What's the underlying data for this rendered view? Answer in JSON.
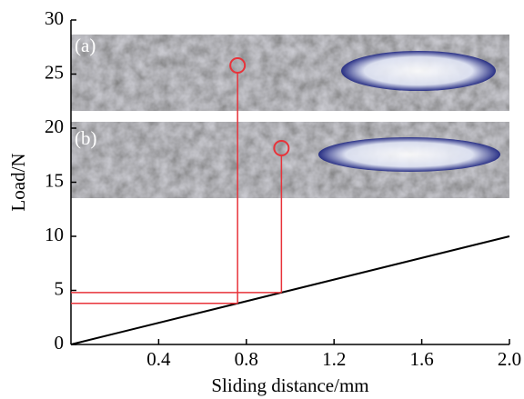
{
  "chart_data": {
    "type": "line",
    "xlabel": "Sliding distance/mm",
    "ylabel": "Load/N",
    "series": [
      {
        "color": "#000000",
        "x": [
          0,
          2
        ],
        "values": [
          0,
          10
        ]
      }
    ],
    "markers": [
      {
        "label": "(a)",
        "x": 0.76,
        "y": 3.8,
        "color": "#e8333a"
      },
      {
        "label": "(b)",
        "x": 0.96,
        "y": 4.8,
        "color": "#e8333a"
      }
    ],
    "xlim": [
      0,
      2
    ],
    "ylim": [
      0,
      30
    ],
    "xticks": [
      0.4,
      0.8,
      1.2,
      1.6,
      {
        "value": 2,
        "label": "2.0"
      }
    ],
    "yticks": [
      0,
      5,
      10,
      15,
      20,
      25,
      30
    ]
  }
}
